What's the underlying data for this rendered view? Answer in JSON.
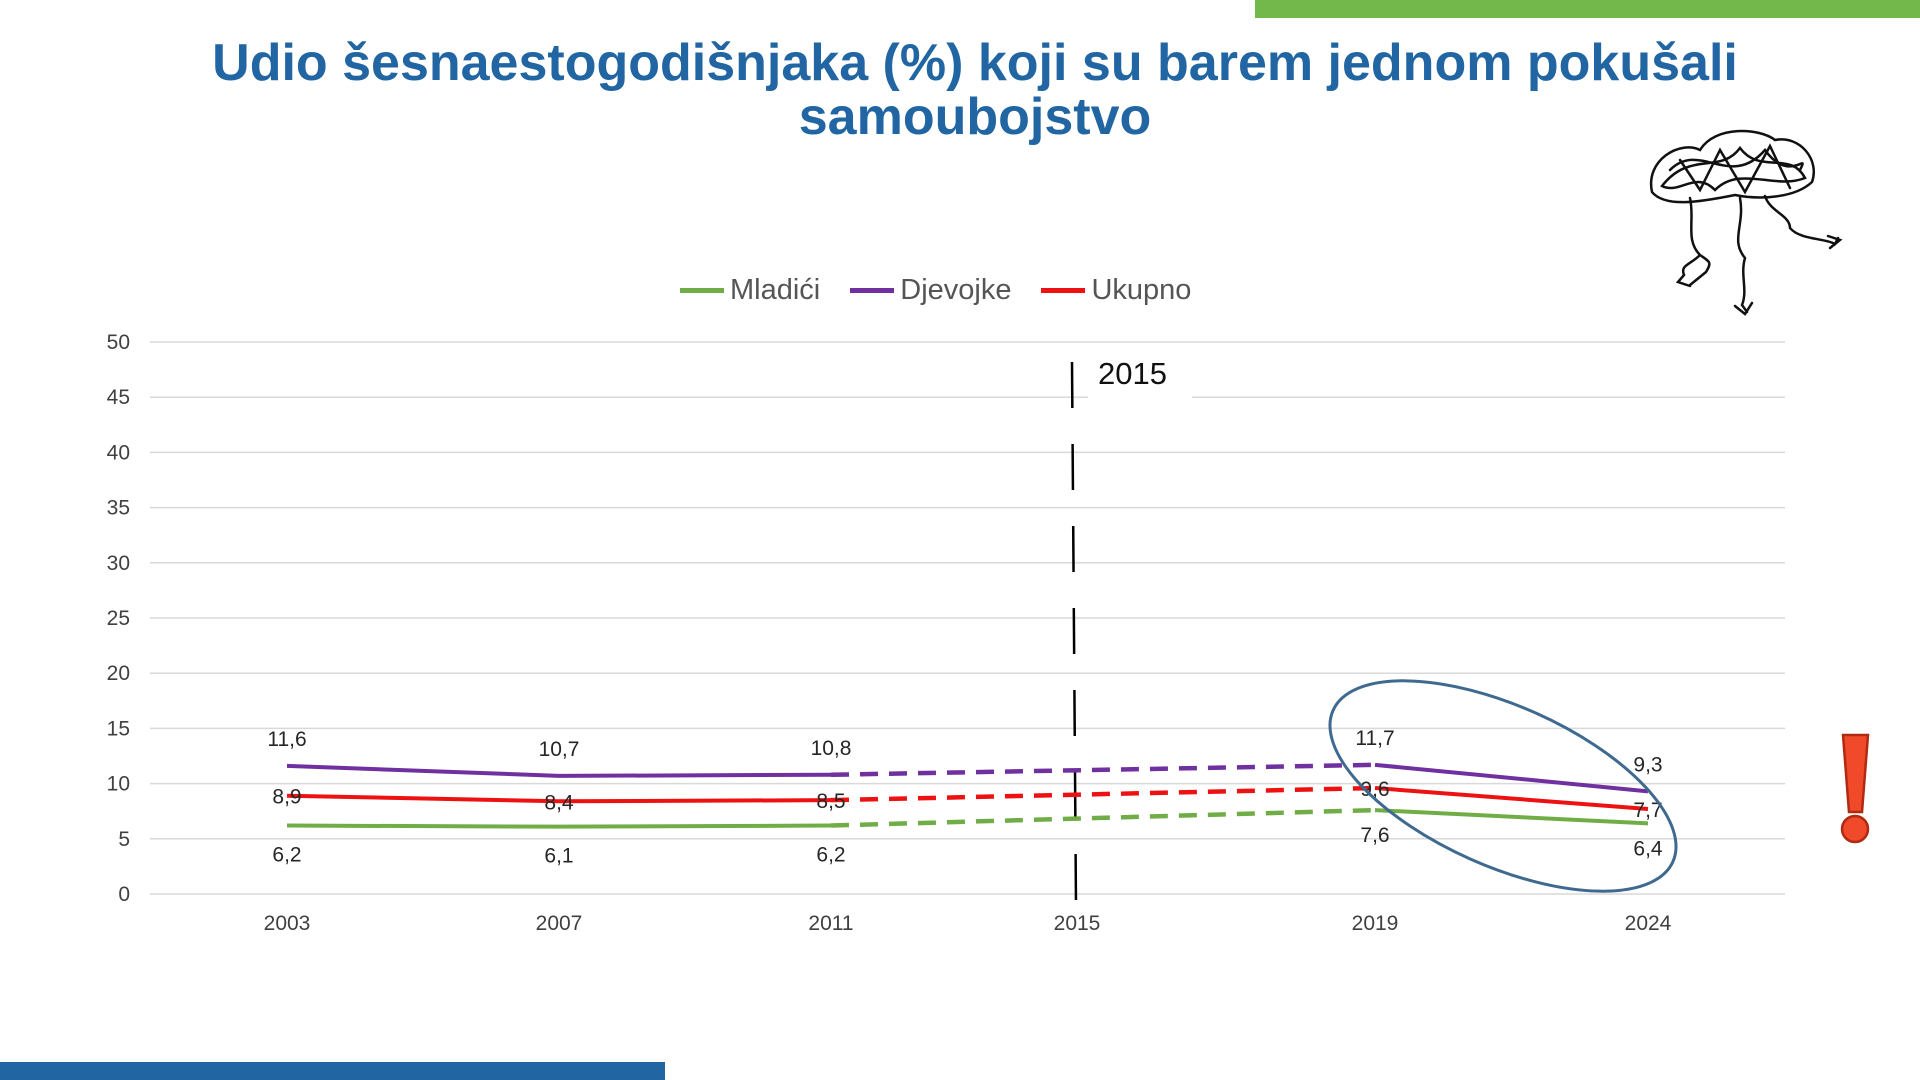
{
  "title": {
    "line1": "Udio šesnaestogodišnjaka (%) koji su barem jednom pokušali",
    "line2": "samoubojstvo"
  },
  "colors": {
    "title": "#2166a3",
    "bar_top": "#72b84a",
    "bar_bottom": "#2166a3",
    "ellipse": "#3f6a8f",
    "exclamation_fill": "#f04a2a",
    "exclamation_stroke": "#b02a10"
  },
  "icons": {
    "decoration": "scribble-figure-icon",
    "alert": "exclamation-icon"
  },
  "marker_label": "2015",
  "chart_data": {
    "type": "line",
    "categories": [
      "2003",
      "2007",
      "2011",
      "2015",
      "2019",
      "2024"
    ],
    "ylim": [
      0,
      50
    ],
    "yticks": [
      "0",
      "5",
      "10",
      "15",
      "20",
      "25",
      "30",
      "35",
      "40",
      "45",
      "50"
    ],
    "grid": true,
    "legend_position": "top",
    "series": [
      {
        "name": "Mladići",
        "color": "#70ad47",
        "values": [
          6.2,
          6.1,
          6.2,
          null,
          7.6,
          6.4
        ],
        "labels": [
          "6,2",
          "6,1",
          "6,2",
          "",
          "7,6",
          "6,4"
        ]
      },
      {
        "name": "Djevojke",
        "color": "#7030a0",
        "values": [
          11.6,
          10.7,
          10.8,
          null,
          11.7,
          9.3
        ],
        "labels": [
          "11,6",
          "10,7",
          "10,8",
          "",
          "11,7",
          "9,3"
        ]
      },
      {
        "name": "Ukupno",
        "color": "#ee1111",
        "values": [
          8.9,
          8.4,
          8.5,
          null,
          9.6,
          7.7
        ],
        "labels": [
          "8,9",
          "8,4",
          "8,5",
          "",
          "9,6",
          "7,7"
        ]
      }
    ],
    "gap_category": "2015"
  }
}
